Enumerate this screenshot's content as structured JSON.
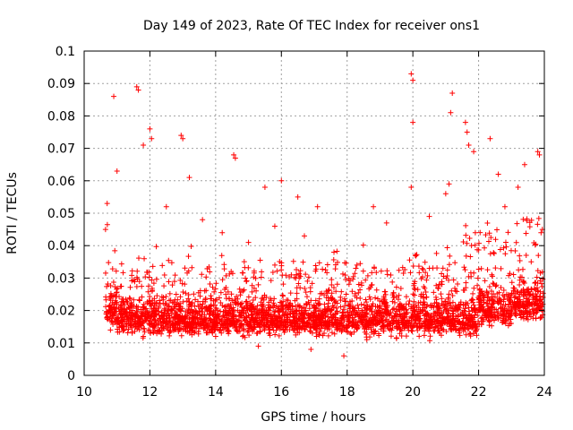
{
  "chart_data": {
    "type": "scatter",
    "title": "Day 149 of 2023, Rate Of TEC Index for receiver ons1",
    "xlabel": "GPS time / hours",
    "ylabel": "ROTI / TECUs",
    "xlim": [
      10,
      24
    ],
    "ylim": [
      0,
      0.1
    ],
    "x_ticks": [
      "10",
      "12",
      "14",
      "16",
      "18",
      "20",
      "22",
      "24"
    ],
    "y_ticks": [
      "0",
      "0.01",
      "0.02",
      "0.03",
      "0.04",
      "0.05",
      "0.06",
      "0.07",
      "0.08",
      "0.09",
      "0.1"
    ],
    "grid": true,
    "marker": "plus",
    "color": "#ff0000",
    "series": [
      {
        "x": [
          10.9,
          11.6,
          11.65,
          12.0,
          12.05,
          11.8,
          12.95,
          13.0,
          14.55,
          14.6,
          16.0,
          17.1,
          18.8,
          19.95,
          20.0,
          20.0,
          19.95,
          21.2,
          21.15,
          21.6,
          21.65,
          21.7,
          21.85,
          22.35,
          23.8,
          23.85,
          23.4,
          22.6,
          21.1,
          15.5,
          16.5,
          13.6,
          10.7,
          10.65,
          11.0,
          12.5,
          13.2,
          14.2,
          15.0,
          15.8,
          16.7,
          17.6,
          18.3,
          19.2,
          20.5,
          21.0,
          21.9,
          22.8,
          23.2,
          23.9,
          11.3,
          14.9,
          17.9,
          19.5,
          22.1,
          12.8,
          16.2,
          18.6,
          20.8,
          23.6,
          11.8,
          13.6,
          15.3,
          17.3,
          19.8,
          22.4,
          10.8,
          14.0,
          16.9,
          21.3
        ],
        "y": [
          0.086,
          0.089,
          0.088,
          0.076,
          0.073,
          0.071,
          0.074,
          0.073,
          0.068,
          0.067,
          0.06,
          0.052,
          0.052,
          0.093,
          0.091,
          0.078,
          0.058,
          0.087,
          0.081,
          0.078,
          0.075,
          0.071,
          0.069,
          0.073,
          0.069,
          0.068,
          0.065,
          0.062,
          0.059,
          0.058,
          0.055,
          0.048,
          0.053,
          0.045,
          0.063,
          0.052,
          0.061,
          0.044,
          0.041,
          0.046,
          0.043,
          0.038,
          0.034,
          0.047,
          0.049,
          0.056,
          0.044,
          0.052,
          0.058,
          0.044,
          0.019,
          0.017,
          0.006,
          0.015,
          0.021,
          0.025,
          0.018,
          0.011,
          0.028,
          0.035,
          0.012,
          0.016,
          0.009,
          0.013,
          0.022,
          0.031,
          0.014,
          0.012,
          0.008,
          0.026
        ]
      }
    ]
  }
}
